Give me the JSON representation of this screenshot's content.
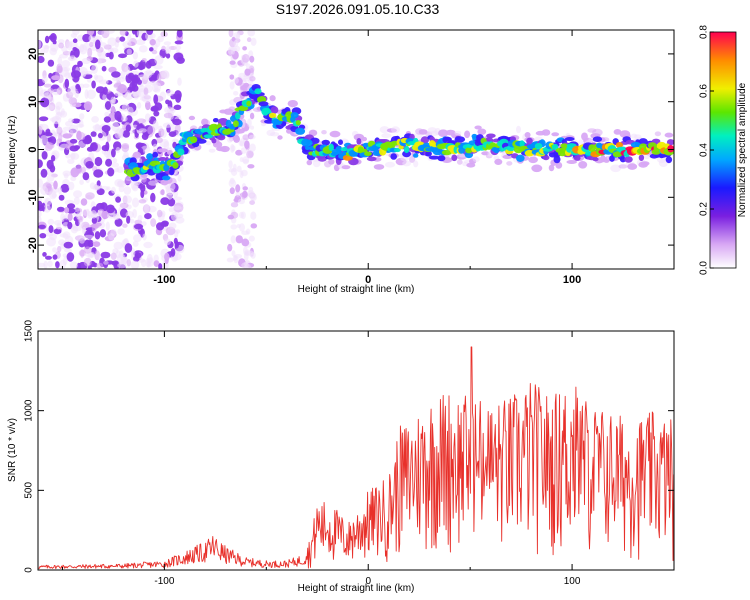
{
  "title": "S197.2026.091.05.10.C33",
  "chart_data": [
    {
      "type": "heatmap",
      "name": "spectrogram",
      "xlabel": "Height of straight line (km)",
      "ylabel": "Frequency (Hz)",
      "xlim": [
        -162,
        150
      ],
      "ylim": [
        -25,
        25
      ],
      "xticks": [
        -100,
        0,
        100
      ],
      "yticks": [
        -20,
        -10,
        0,
        10,
        20
      ],
      "xtick_labels": [
        "-100",
        "0",
        "100"
      ],
      "ytick_labels": [
        "-20",
        "-10",
        "0",
        "10",
        "20"
      ],
      "colorbar": {
        "label": "Normalized spectral amplitude",
        "range": [
          0,
          0.8
        ],
        "ticks": [
          "0.0",
          "0.2",
          "0.4",
          "0.6",
          "0.8"
        ]
      },
      "ridge": {
        "x": [
          -115,
          -105,
          -100,
          -95,
          -90,
          -85,
          -80,
          -75,
          -70,
          -65,
          -60,
          -55,
          -50,
          -45,
          -40,
          -35,
          -32,
          -28,
          -20,
          -10,
          0,
          20,
          40,
          60,
          80,
          100,
          120,
          140,
          148
        ],
        "y": [
          -4,
          -3,
          -4,
          -3,
          2,
          3,
          3,
          4,
          4,
          6,
          10,
          12,
          8,
          6,
          7,
          6,
          2,
          0,
          0,
          -1,
          0,
          1,
          0,
          1,
          0,
          0,
          0,
          0,
          0
        ]
      }
    },
    {
      "type": "line",
      "name": "snr",
      "xlabel": "Height of straight line (km)",
      "ylabel": "SNR (10 * v/v)",
      "xlim": [
        -162,
        150
      ],
      "ylim": [
        0,
        1500
      ],
      "xticks": [
        -100,
        0,
        100
      ],
      "yticks": [
        0,
        500,
        1000,
        1500
      ],
      "xtick_labels": [
        "-100",
        "0",
        "100"
      ],
      "ytick_labels": [
        "0",
        "500",
        "1000",
        "1500"
      ],
      "series": [
        {
          "name": "SNR",
          "color": "#e8302a",
          "envelope_x": [
            -162,
            -140,
            -120,
            -100,
            -90,
            -80,
            -76,
            -70,
            -60,
            -50,
            -40,
            -32,
            -28,
            -25,
            -20,
            -15,
            -10,
            0,
            10,
            15,
            20,
            30,
            40,
            50,
            60,
            70,
            80,
            90,
            100,
            110,
            120,
            130,
            140,
            150
          ],
          "envelope_y": [
            30,
            35,
            40,
            60,
            120,
            180,
            230,
            150,
            80,
            60,
            60,
            100,
            220,
            450,
            430,
            380,
            300,
            500,
            600,
            900,
            950,
            1100,
            1150,
            1100,
            1050,
            1100,
            1200,
            1100,
            1200,
            1050,
            1000,
            950,
            1000,
            950
          ]
        }
      ]
    }
  ]
}
